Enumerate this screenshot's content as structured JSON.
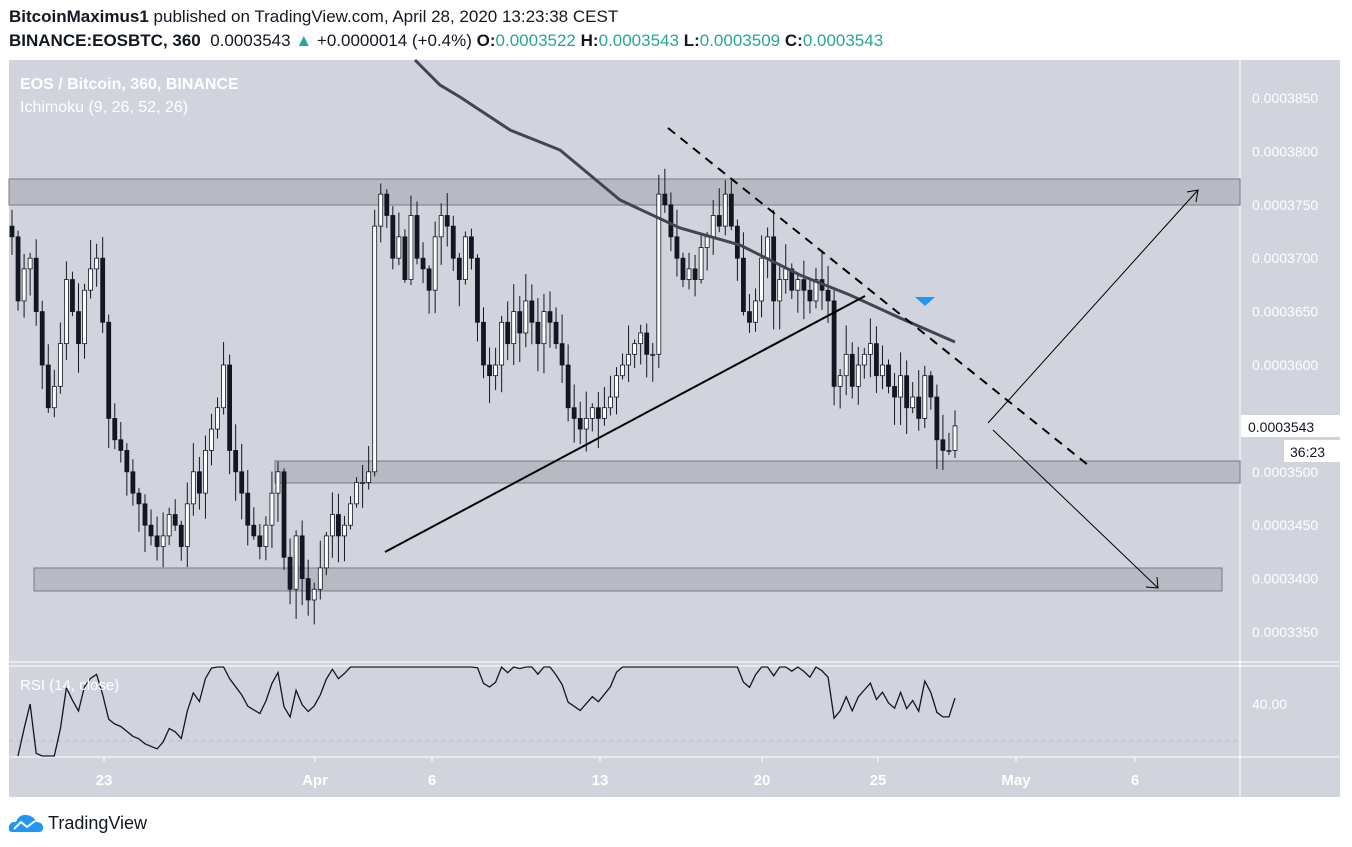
{
  "header": {
    "author": "BitcoinMaximus1",
    "published": "published on TradingView.com, April 28, 2020 13:23:38 CEST",
    "symbol": "BINANCE:EOSBTC, 360",
    "last": "0.0003543",
    "arrow": "▲",
    "change": "+0.0000014 (+0.4%)",
    "o_label": "O:",
    "o": "0.0003522",
    "h_label": "H:",
    "h": "0.0003543",
    "l_label": "L:",
    "l": "0.0003509",
    "c_label": "C:",
    "c": "0.0003543"
  },
  "legend": {
    "title": "EOS / Bitcoin, 360, BINANCE",
    "indicator": "Ichimoku (9, 26, 52, 26)",
    "rsi": "RSI (14, close)"
  },
  "price_tag": "0.0003543",
  "countdown": "36:23",
  "footer": {
    "brand": "TradingView"
  },
  "colors": {
    "bg": "#d1d4dc",
    "up": "#ffffff",
    "down": "#131722",
    "accent": "#2196f3",
    "green": "#26a69a"
  },
  "chart_data": {
    "type": "candlestick",
    "title": "EOS / Bitcoin, 360, BINANCE",
    "price_unit": "1e-7 BTC",
    "ylim": [
      3320,
      3880
    ],
    "y_ticks": [
      "0.0003850",
      "0.0003800",
      "0.0003750",
      "0.0003700",
      "0.0003650",
      "0.0003600",
      "0.0003500",
      "0.0003450",
      "0.0003400",
      "0.0003350"
    ],
    "x_ticks": [
      "23",
      "Apr",
      "6",
      "13",
      "20",
      "25",
      "May",
      "6"
    ],
    "rsi_tick": "40.00",
    "closes": [
      3720,
      3660,
      3690,
      3700,
      3650,
      3600,
      3560,
      3580,
      3620,
      3680,
      3650,
      3620,
      3670,
      3690,
      3700,
      3640,
      3550,
      3530,
      3520,
      3500,
      3480,
      3470,
      3450,
      3440,
      3430,
      3440,
      3460,
      3450,
      3430,
      3470,
      3500,
      3480,
      3520,
      3540,
      3560,
      3600,
      3520,
      3500,
      3480,
      3450,
      3440,
      3430,
      3450,
      3480,
      3500,
      3420,
      3390,
      3440,
      3400,
      3380,
      3390,
      3410,
      3440,
      3460,
      3440,
      3450,
      3470,
      3490,
      3490,
      3500,
      3730,
      3760,
      3740,
      3700,
      3720,
      3680,
      3740,
      3700,
      3690,
      3670,
      3720,
      3740,
      3730,
      3700,
      3680,
      3720,
      3700,
      3640,
      3600,
      3590,
      3600,
      3640,
      3620,
      3650,
      3630,
      3660,
      3640,
      3620,
      3650,
      3640,
      3620,
      3600,
      3560,
      3550,
      3540,
      3550,
      3560,
      3550,
      3560,
      3570,
      3590,
      3600,
      3610,
      3620,
      3630,
      3610,
      3610,
      3760,
      3750,
      3720,
      3700,
      3680,
      3690,
      3680,
      3710,
      3720,
      3740,
      3730,
      3760,
      3730,
      3700,
      3650,
      3640,
      3660,
      3700,
      3720,
      3660,
      3680,
      3690,
      3670,
      3680,
      3670,
      3660,
      3680,
      3670,
      3660,
      3580,
      3590,
      3610,
      3580,
      3600,
      3610,
      3620,
      3590,
      3600,
      3580,
      3570,
      3590,
      3560,
      3570,
      3550,
      3590,
      3570,
      3530,
      3520,
      3520,
      3543
    ]
  }
}
